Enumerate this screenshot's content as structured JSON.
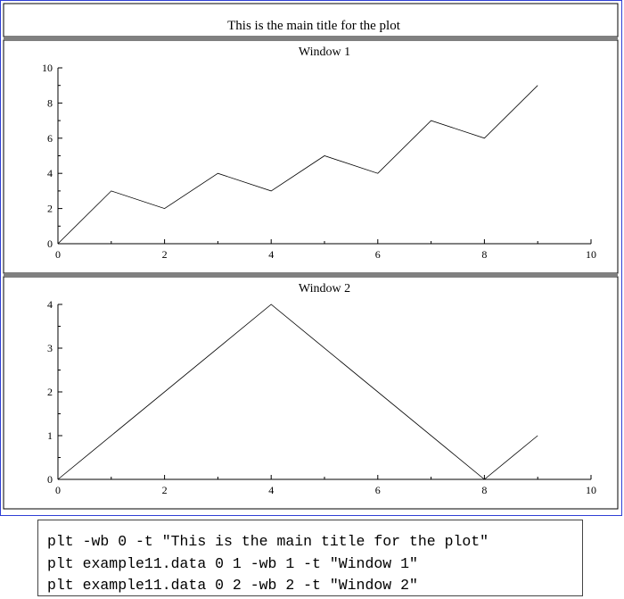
{
  "main_title": "This is the main title for the plot",
  "commands": [
    "plt -wb 0 -t \"This is the main title for the plot\"",
    "plt example11.data 0 1 -wb 1 -t \"Window 1\"",
    "plt example11.data 0 2 -wb 2 -t \"Window 2\""
  ],
  "chart_data": [
    {
      "type": "line",
      "title": "Window 1",
      "xlabel": "",
      "ylabel": "",
      "xlim": [
        0,
        10
      ],
      "ylim": [
        0,
        10
      ],
      "x_ticks": [
        0,
        2,
        4,
        6,
        8,
        10
      ],
      "y_ticks": [
        0,
        2,
        4,
        6,
        8,
        10
      ],
      "series": [
        {
          "x": [
            0,
            1,
            2,
            3,
            4,
            5,
            6,
            7,
            8,
            9
          ],
          "y": [
            0,
            3,
            2,
            4,
            3,
            5,
            4,
            7,
            6,
            9
          ]
        }
      ]
    },
    {
      "type": "line",
      "title": "Window 2",
      "xlabel": "",
      "ylabel": "",
      "xlim": [
        0,
        10
      ],
      "ylim": [
        0,
        4
      ],
      "x_ticks": [
        0,
        2,
        4,
        6,
        8,
        10
      ],
      "y_ticks": [
        0,
        1,
        2,
        3,
        4
      ],
      "series": [
        {
          "x": [
            0,
            4,
            8,
            9
          ],
          "y": [
            0,
            4,
            0,
            1
          ]
        }
      ]
    }
  ]
}
